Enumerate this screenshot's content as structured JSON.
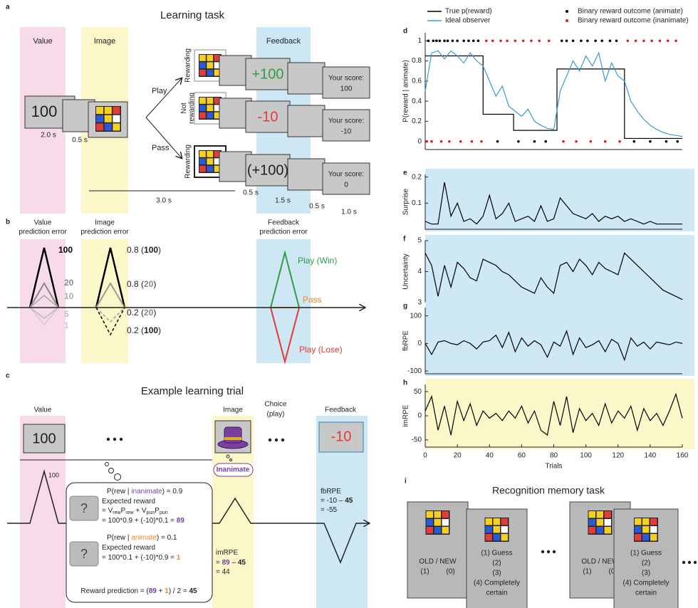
{
  "figure": {
    "a": {
      "label": "a",
      "title": "Learning task",
      "headers": [
        "Value",
        "Image",
        "Feedback"
      ],
      "value_card": "100",
      "choices": [
        "Play",
        "Pass"
      ],
      "rows": [
        {
          "side": [
            "Rewarding"
          ],
          "outcome": "+100",
          "score_label": "Your score:",
          "score": "100"
        },
        {
          "side": [
            "Not",
            "rewarding"
          ],
          "outcome": "-10",
          "score_label": "Your score:",
          "score": "-10"
        },
        {
          "side": [
            "Rewarding"
          ],
          "outcome": "(+100)",
          "score_label": "Your score:",
          "score": "0"
        }
      ],
      "durations": [
        "2.0 s",
        "0.5 s",
        "3.0 s",
        "0.5 s",
        "1.5 s",
        "0.5 s",
        "1.0 s"
      ]
    },
    "b": {
      "label": "b",
      "headers": [
        [
          "Value",
          "prediction error"
        ],
        [
          "Image",
          "prediction error"
        ],
        [
          "Feedback",
          "prediction error"
        ]
      ],
      "value_levels": [
        "100",
        "20",
        "10",
        "5",
        "1"
      ],
      "image_levels": [
        [
          "0.8 (",
          "100",
          ")"
        ],
        [
          "0.8 (",
          "20",
          ")"
        ],
        [
          "0.2 (",
          "20",
          ")"
        ],
        [
          "0.2 (",
          "100",
          ")"
        ]
      ],
      "feedback_outcomes": [
        "Play (Win)",
        "Pass",
        "Play (Lose)"
      ]
    },
    "c": {
      "label": "c",
      "title": "Example learning trial",
      "value_header": "Value",
      "image_header": "Image",
      "choice_header": [
        "Choice",
        "(play)"
      ],
      "feedback_header": "Feedback",
      "value_card": "100",
      "feedback_card": "-10",
      "peak_label": "100",
      "category_label": "Inanimate",
      "unknown_icon": "?",
      "bubble": [
        [
          "P(rew | ",
          "inanimate",
          ") = 0.9"
        ],
        [
          "Expected reward"
        ],
        [
          "= V",
          "rew",
          "P",
          "rew",
          " + V",
          "pun",
          "P",
          "pun"
        ],
        [
          "= 100*0.9 + (-10)*0.1 = ",
          "89"
        ],
        [
          "P(rew | ",
          "animate",
          ") = 0.1"
        ],
        [
          "Expected reward"
        ],
        [
          "= 100*0.1 + (-10)*0.9 = ",
          "1"
        ],
        [
          "Reward prediction = (",
          "89",
          " + ",
          "1",
          ") / 2 = ",
          "45"
        ]
      ],
      "imrpe": [
        [
          "imRPE"
        ],
        [
          "= ",
          "89",
          " – ",
          "45"
        ],
        [
          "= 44"
        ]
      ],
      "fbrpe": [
        [
          "fbRPE"
        ],
        [
          "= -10 – ",
          "45"
        ],
        [
          "= -55"
        ]
      ]
    },
    "i": {
      "label": "i",
      "title": "Recognition memory task",
      "cards": [
        {
          "prompt": "OLD / NEW",
          "options": [
            "(1)",
            "(0)"
          ]
        },
        {
          "lines": [
            "(1) Guess",
            "(2)",
            "(3)",
            "(4) Completely",
            "certain"
          ]
        },
        {
          "prompt": "OLD / NEW",
          "options": [
            "(1)",
            "(0)"
          ]
        },
        {
          "lines": [
            "(1) Guess",
            "(2)",
            "(3)",
            "(4) Completely",
            "certain"
          ]
        }
      ]
    }
  },
  "chart_data": [
    {
      "label": "d",
      "type": "line",
      "ylabel": "P(reward | animate)",
      "xlim": [
        0,
        160
      ],
      "ylim": [
        -0.08,
        1.08
      ],
      "yticks": [
        0,
        0.2,
        0.4,
        0.6,
        0.8,
        1
      ],
      "legend": "top",
      "series": [
        {
          "name": "True p(reward)",
          "color": "#000000",
          "style": "line",
          "x": [
            0,
            36,
            36,
            55,
            55,
            82,
            82,
            124,
            124,
            160
          ],
          "values": [
            0.85,
            0.85,
            0.27,
            0.27,
            0.11,
            0.11,
            0.72,
            0.72,
            0.03,
            0.03
          ]
        },
        {
          "name": "Ideal observer",
          "color": "#3a9ad9",
          "style": "line",
          "x": [
            0,
            4,
            8,
            12,
            16,
            20,
            24,
            28,
            32,
            36,
            40,
            44,
            48,
            52,
            56,
            60,
            64,
            68,
            72,
            76,
            80,
            84,
            88,
            92,
            96,
            100,
            104,
            108,
            112,
            116,
            120,
            124,
            128,
            132,
            136,
            140,
            144,
            148,
            152,
            156,
            160
          ],
          "values": [
            0.5,
            0.88,
            0.9,
            0.82,
            0.9,
            0.85,
            0.78,
            0.88,
            0.8,
            0.75,
            0.6,
            0.45,
            0.55,
            0.35,
            0.3,
            0.25,
            0.32,
            0.2,
            0.16,
            0.13,
            0.12,
            0.5,
            0.65,
            0.8,
            0.7,
            0.85,
            0.75,
            0.88,
            0.6,
            0.78,
            0.65,
            0.6,
            0.4,
            0.3,
            0.22,
            0.16,
            0.12,
            0.09,
            0.07,
            0.06,
            0.05
          ]
        },
        {
          "name": "Binary reward outcome (animate)",
          "color": "#000000",
          "style": "dots",
          "x": [
            2,
            5,
            7,
            9,
            12,
            14,
            17,
            20,
            24,
            27,
            30,
            33,
            45,
            58,
            68,
            75,
            85,
            88,
            92,
            97,
            101,
            106,
            110,
            115,
            119,
            130,
            140,
            150,
            157
          ],
          "values": [
            1,
            1,
            1,
            1,
            1,
            1,
            1,
            1,
            1,
            1,
            1,
            1,
            0,
            0,
            0,
            0,
            1,
            1,
            1,
            1,
            1,
            1,
            1,
            1,
            1,
            0,
            0,
            0,
            0
          ]
        },
        {
          "name": "Binary reward outcome (inanimate)",
          "color": "#e02020",
          "style": "dots",
          "x": [
            1,
            4,
            10,
            15,
            22,
            29,
            35,
            38,
            42,
            47,
            51,
            56,
            61,
            66,
            71,
            77,
            86,
            94,
            103,
            112,
            121,
            126,
            131,
            136,
            141,
            146,
            151,
            156
          ],
          "values": [
            0,
            0,
            0,
            0,
            0,
            0,
            0,
            1,
            1,
            1,
            1,
            1,
            1,
            1,
            1,
            1,
            0,
            0,
            0,
            0,
            0,
            1,
            1,
            1,
            1,
            1,
            1,
            1
          ]
        }
      ]
    },
    {
      "label": "e",
      "type": "line",
      "ylabel": "Surprise",
      "background": "#cfe8f5",
      "xlim": [
        0,
        160
      ],
      "ylim": [
        0,
        0.21
      ],
      "yticks": [
        0.1,
        0.2
      ],
      "series": [
        {
          "color": "#000000",
          "style": "line",
          "x": [
            0,
            4,
            8,
            12,
            16,
            20,
            24,
            28,
            32,
            36,
            40,
            44,
            48,
            52,
            56,
            60,
            64,
            68,
            72,
            76,
            80,
            84,
            88,
            92,
            96,
            100,
            104,
            108,
            112,
            116,
            120,
            124,
            128,
            132,
            136,
            140,
            144,
            148,
            152,
            156,
            160
          ],
          "values": [
            0.03,
            0.02,
            0.02,
            0.18,
            0.05,
            0.1,
            0.03,
            0.04,
            0.02,
            0.05,
            0.13,
            0.04,
            0.06,
            0.1,
            0.03,
            0.04,
            0.05,
            0.03,
            0.09,
            0.03,
            0.04,
            0.12,
            0.09,
            0.06,
            0.05,
            0.04,
            0.06,
            0.03,
            0.05,
            0.04,
            0.05,
            0.03,
            0.04,
            0.03,
            0.02,
            0.03,
            0.02,
            0.02,
            0.02,
            0.02,
            0.02
          ]
        }
      ]
    },
    {
      "label": "f",
      "type": "line",
      "ylabel": "Uncertainty",
      "background": "#cfe8f5",
      "xlim": [
        0,
        160
      ],
      "ylim": [
        3,
        5
      ],
      "yticks": [
        3,
        4,
        5
      ],
      "series": [
        {
          "color": "#000000",
          "style": "line",
          "x": [
            0,
            4,
            8,
            12,
            16,
            20,
            24,
            28,
            32,
            36,
            40,
            44,
            48,
            52,
            56,
            60,
            64,
            68,
            72,
            76,
            80,
            84,
            88,
            92,
            96,
            100,
            104,
            108,
            112,
            116,
            120,
            124,
            128,
            132,
            136,
            140,
            144,
            148,
            152,
            156,
            160
          ],
          "values": [
            4.6,
            4.2,
            3.2,
            4.2,
            3.5,
            4.3,
            4.1,
            3.8,
            3.7,
            4.4,
            4.3,
            4.2,
            4.0,
            3.9,
            3.7,
            3.5,
            3.4,
            3.3,
            3.8,
            3.5,
            3.3,
            4.2,
            4.3,
            4.0,
            4.4,
            4.2,
            3.9,
            4.3,
            4.1,
            4.0,
            3.9,
            4.6,
            4.4,
            4.2,
            4.0,
            3.8,
            3.6,
            3.4,
            3.3,
            3.2,
            3.1
          ]
        }
      ]
    },
    {
      "label": "g",
      "type": "line",
      "ylabel": "fbRPE",
      "background": "#cfe8f5",
      "xlim": [
        0,
        160
      ],
      "ylim": [
        -110,
        130
      ],
      "yticks": [
        -100,
        0,
        100
      ],
      "series": [
        {
          "color": "#000000",
          "style": "line",
          "x": [
            0,
            4,
            8,
            12,
            16,
            20,
            24,
            28,
            32,
            36,
            40,
            44,
            48,
            52,
            56,
            60,
            64,
            68,
            72,
            76,
            80,
            84,
            88,
            92,
            96,
            100,
            104,
            108,
            112,
            116,
            120,
            124,
            128,
            132,
            136,
            140,
            144,
            148,
            152,
            156,
            160
          ],
          "values": [
            0,
            -40,
            5,
            10,
            0,
            -5,
            10,
            0,
            -20,
            5,
            10,
            30,
            -15,
            40,
            -30,
            20,
            -10,
            10,
            -5,
            -50,
            5,
            -10,
            45,
            -40,
            20,
            -15,
            -5,
            10,
            -30,
            15,
            0,
            -60,
            20,
            -10,
            5,
            -20,
            5,
            0,
            -5,
            5,
            0
          ]
        }
      ]
    },
    {
      "label": "h",
      "type": "line",
      "ylabel": "imRPE",
      "xlabel": "Trials",
      "background": "#fcf7c9",
      "xlim": [
        0,
        160
      ],
      "ylim": [
        -65,
        65
      ],
      "yticks": [
        -50,
        0,
        50
      ],
      "xticks": [
        0,
        20,
        40,
        60,
        80,
        100,
        120,
        140,
        160
      ],
      "series": [
        {
          "color": "#000000",
          "style": "line",
          "x": [
            0,
            4,
            8,
            12,
            16,
            20,
            24,
            28,
            32,
            36,
            40,
            44,
            48,
            52,
            56,
            60,
            64,
            68,
            72,
            76,
            80,
            84,
            88,
            92,
            96,
            100,
            104,
            108,
            112,
            116,
            120,
            124,
            128,
            132,
            136,
            140,
            144,
            148,
            152,
            156,
            160
          ],
          "values": [
            10,
            40,
            -30,
            20,
            -40,
            30,
            -10,
            25,
            -20,
            10,
            -5,
            5,
            -10,
            10,
            -5,
            20,
            -15,
            10,
            -30,
            -40,
            30,
            -20,
            40,
            -35,
            15,
            -10,
            5,
            -20,
            25,
            -15,
            10,
            -5,
            20,
            -30,
            15,
            -10,
            5,
            -20,
            10,
            45,
            -5
          ]
        }
      ]
    }
  ]
}
